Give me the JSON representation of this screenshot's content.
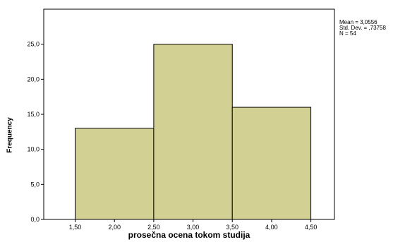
{
  "chart_data": {
    "type": "bar",
    "subtype": "histogram",
    "bins": [
      {
        "from": 1.5,
        "to": 2.5,
        "frequency": 13
      },
      {
        "from": 2.5,
        "to": 3.5,
        "frequency": 25
      },
      {
        "from": 3.5,
        "to": 4.5,
        "frequency": 16
      }
    ],
    "xlabel": "prosečna ocena tokom studija",
    "ylabel": "Frequency",
    "xlim": [
      1.1,
      4.8
    ],
    "ylim": [
      0,
      30
    ],
    "x_ticks": [
      "1,50",
      "2,00",
      "2,50",
      "3,00",
      "3,50",
      "4,00",
      "4,50"
    ],
    "x_tick_values": [
      1.5,
      2.0,
      2.5,
      3.0,
      3.5,
      4.0,
      4.5
    ],
    "y_ticks": [
      "0,0",
      "5,0",
      "10,0",
      "15,0",
      "20,0",
      "25,0"
    ],
    "y_tick_values": [
      0,
      5,
      10,
      15,
      20,
      25
    ],
    "bar_color": "#d3d094",
    "grid": false,
    "stats": [
      "Mean = 3,0556",
      "Std. Dev. = ,73758",
      "N = 54"
    ]
  }
}
